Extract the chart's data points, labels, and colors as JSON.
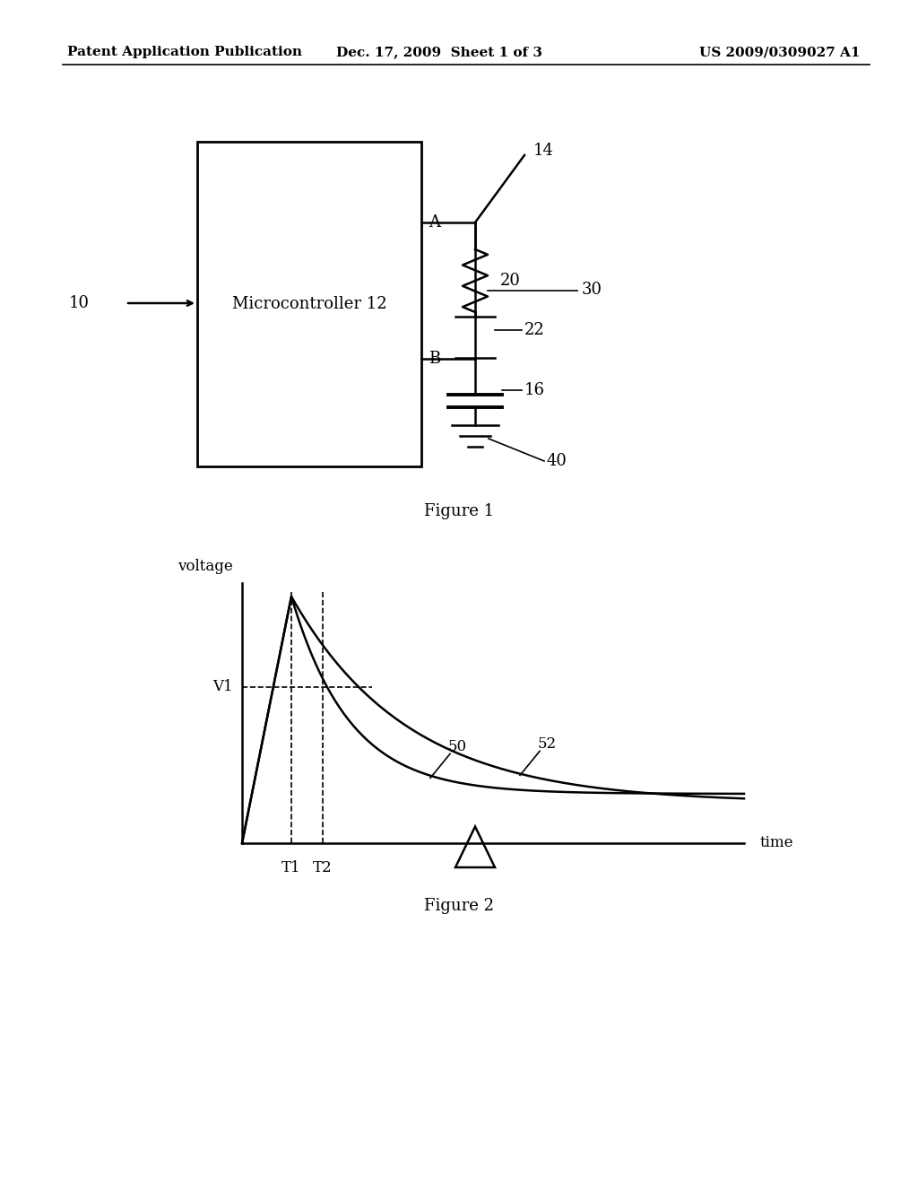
{
  "bg_color": "#ffffff",
  "header_left": "Patent Application Publication",
  "header_center": "Dec. 17, 2009  Sheet 1 of 3",
  "header_right": "US 2009/0309027 A1",
  "fig1_caption": "Figure 1",
  "fig2_caption": "Figure 2"
}
